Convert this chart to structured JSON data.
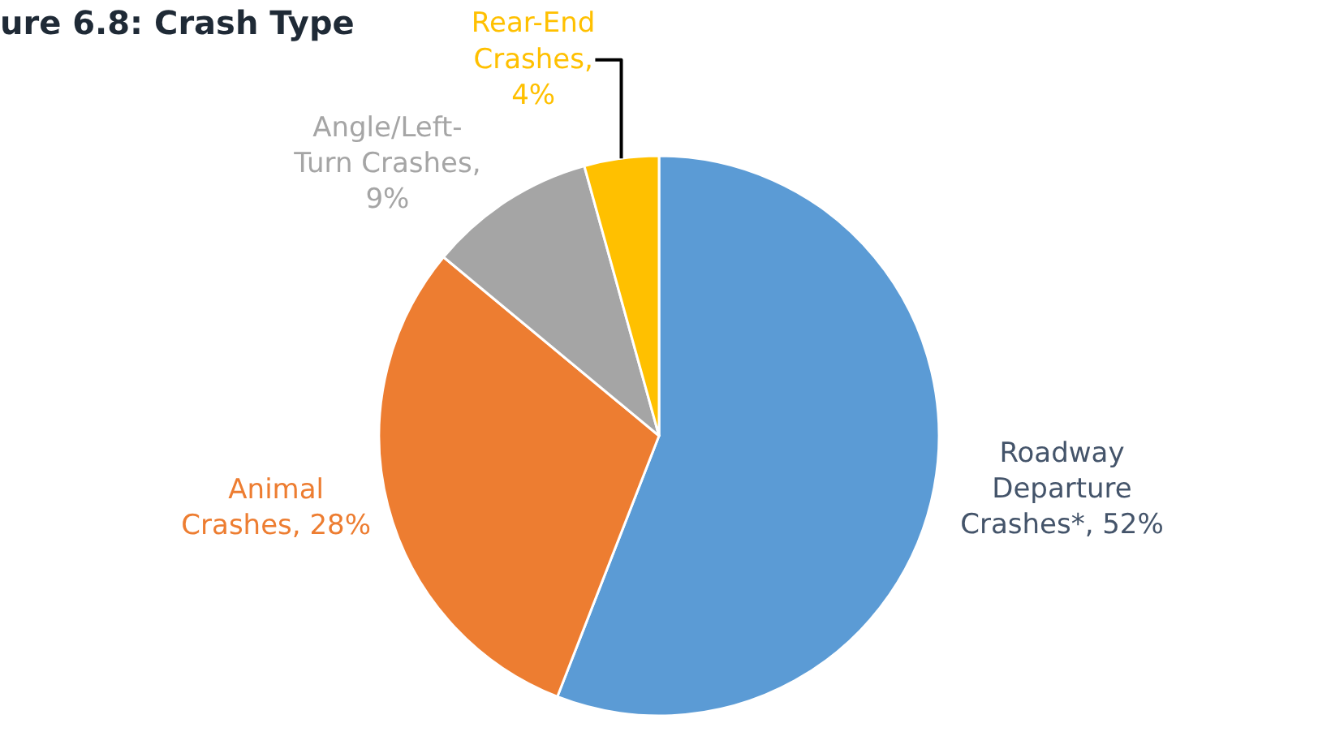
{
  "chart_data": {
    "type": "pie",
    "title": "ure 6.8: Crash Type",
    "categories": [
      "Roadway\nDeparture\nCrashes*, 52%",
      "Animal\nCrashes, 28%",
      "Angle/Left-\nTurn Crashes,\n9%",
      "Rear-End\nCrashes,\n4%"
    ],
    "values": [
      52,
      28,
      9,
      4
    ],
    "colors": [
      "#5b9bd5",
      "#ed7d31",
      "#a5a5a5",
      "#ffc000"
    ]
  }
}
